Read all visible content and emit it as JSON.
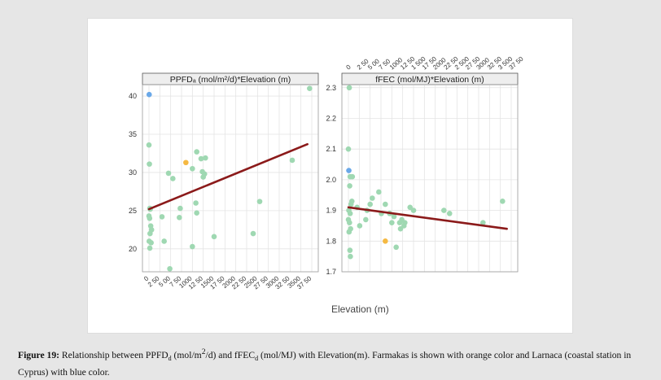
{
  "figure": {
    "xlabel": "Elevation (m)",
    "caption_label": "Figure 19:",
    "caption_text_1": "Relationship between PPFD",
    "caption_sub_1": "d",
    "caption_text_2": "(mol/m",
    "caption_sup_2": "2",
    "caption_text_3": "/d) and fFEC",
    "caption_sub_3": "d",
    "caption_text_4": "(mol/MJ) with Elevation(m). Farmakas is shown with orange color and Larnaca (coastal station in Cyprus) with blue color."
  },
  "colors": {
    "point": "#9fd8b2",
    "highlight_orange": "#f5b942",
    "highlight_blue": "#6aa8e8",
    "trend": "#8b1a1a",
    "strip": "#eeeeee",
    "grid": "#e4e4e4"
  },
  "chart_data": [
    {
      "type": "scatter",
      "title": "PPFDₐ (mol/m²/d)*Elevation (m)",
      "xlabel": "Elevation (m)",
      "xlim": [
        0,
        3750
      ],
      "ylim": [
        17,
        41.5
      ],
      "xticks": [
        "0",
        "250",
        "500",
        "750",
        "1000",
        "1250",
        "1500",
        "1750",
        "2000",
        "2250",
        "2500",
        "2750",
        "3000",
        "3250",
        "3500",
        "3750"
      ],
      "xtick_values": [
        0,
        250,
        500,
        750,
        1000,
        1250,
        1500,
        1750,
        2000,
        2250,
        2500,
        2750,
        3000,
        3250,
        3500,
        3750
      ],
      "xtick_labels": [
        "0",
        "2 50",
        "5 00",
        "7 50",
        "1000",
        "12 50",
        "1500",
        "17 50",
        "2000",
        "22 50",
        "2500",
        "27 50",
        "3000",
        "32 50",
        "3500",
        "37 50"
      ],
      "yticks": [
        20,
        25,
        30,
        35,
        40
      ],
      "xtick_position": "bottom",
      "trend": [
        [
          0,
          25.2
        ],
        [
          3650,
          33.7
        ]
      ],
      "points": [
        {
          "x": 5,
          "y": 40.2,
          "c": "blue"
        },
        {
          "x": 850,
          "y": 31.3,
          "c": "orange"
        },
        {
          "x": 0,
          "y": 33.6
        },
        {
          "x": 10,
          "y": 31.1
        },
        {
          "x": 20,
          "y": 25.3
        },
        {
          "x": 30,
          "y": 25.2
        },
        {
          "x": 0,
          "y": 24.3
        },
        {
          "x": 15,
          "y": 24.0
        },
        {
          "x": 40,
          "y": 23.0
        },
        {
          "x": 60,
          "y": 22.5
        },
        {
          "x": 25,
          "y": 22.0
        },
        {
          "x": 5,
          "y": 21.0
        },
        {
          "x": 50,
          "y": 20.8
        },
        {
          "x": 20,
          "y": 20.1
        },
        {
          "x": 300,
          "y": 24.2
        },
        {
          "x": 350,
          "y": 21.0
        },
        {
          "x": 450,
          "y": 29.9
        },
        {
          "x": 550,
          "y": 29.2
        },
        {
          "x": 480,
          "y": 17.4
        },
        {
          "x": 700,
          "y": 24.1
        },
        {
          "x": 720,
          "y": 25.3
        },
        {
          "x": 1000,
          "y": 30.5
        },
        {
          "x": 1000,
          "y": 20.3
        },
        {
          "x": 1080,
          "y": 26.0
        },
        {
          "x": 1100,
          "y": 24.7
        },
        {
          "x": 1100,
          "y": 32.7
        },
        {
          "x": 1200,
          "y": 31.8
        },
        {
          "x": 1230,
          "y": 30.1
        },
        {
          "x": 1250,
          "y": 29.4
        },
        {
          "x": 1300,
          "y": 31.9
        },
        {
          "x": 1280,
          "y": 29.8
        },
        {
          "x": 1500,
          "y": 21.6
        },
        {
          "x": 2400,
          "y": 22.0
        },
        {
          "x": 2550,
          "y": 26.2
        },
        {
          "x": 3300,
          "y": 31.6
        },
        {
          "x": 3700,
          "y": 41.0
        }
      ]
    },
    {
      "type": "scatter",
      "title": "fFEC (mol/MJ)*Elevation (m)",
      "xlim": [
        0,
        3750
      ],
      "ylim": [
        1.7,
        2.31
      ],
      "xticks": [
        "0",
        "250",
        "500",
        "750",
        "1000",
        "1250",
        "1500",
        "1750",
        "2000",
        "2250",
        "2500",
        "2750",
        "3000",
        "3250",
        "3500",
        "3750"
      ],
      "xtick_values": [
        0,
        250,
        500,
        750,
        1000,
        1250,
        1500,
        1750,
        2000,
        2250,
        2500,
        2750,
        3000,
        3250,
        3500,
        3750
      ],
      "xtick_labels": [
        "0",
        "2 50",
        "5 00",
        "7 50",
        "1000",
        "12 50",
        "1 500",
        "17 50",
        "2000",
        "22 50",
        "2 500",
        "27 50",
        "3000",
        "32 50",
        "3 500",
        "37 50"
      ],
      "yticks": [
        1.7,
        1.8,
        1.9,
        2.0,
        2.1,
        2.2,
        2.3
      ],
      "xtick_position": "top",
      "trend": [
        [
          0,
          1.91
        ],
        [
          3650,
          1.84
        ]
      ],
      "points": [
        {
          "x": 10,
          "y": 2.03,
          "c": "blue"
        },
        {
          "x": 850,
          "y": 1.8,
          "c": "orange"
        },
        {
          "x": 20,
          "y": 2.3
        },
        {
          "x": 0,
          "y": 2.1
        },
        {
          "x": 40,
          "y": 2.01
        },
        {
          "x": 90,
          "y": 2.01
        },
        {
          "x": 30,
          "y": 1.98
        },
        {
          "x": 80,
          "y": 1.93
        },
        {
          "x": 60,
          "y": 1.92
        },
        {
          "x": 10,
          "y": 1.9
        },
        {
          "x": 40,
          "y": 1.89
        },
        {
          "x": 0,
          "y": 1.87
        },
        {
          "x": 25,
          "y": 1.86
        },
        {
          "x": 50,
          "y": 1.84
        },
        {
          "x": 15,
          "y": 1.83
        },
        {
          "x": 35,
          "y": 1.77
        },
        {
          "x": 45,
          "y": 1.75
        },
        {
          "x": 200,
          "y": 1.91
        },
        {
          "x": 260,
          "y": 1.85
        },
        {
          "x": 400,
          "y": 1.87
        },
        {
          "x": 430,
          "y": 1.9
        },
        {
          "x": 500,
          "y": 1.92
        },
        {
          "x": 550,
          "y": 1.94
        },
        {
          "x": 700,
          "y": 1.96
        },
        {
          "x": 760,
          "y": 1.89
        },
        {
          "x": 850,
          "y": 1.92
        },
        {
          "x": 950,
          "y": 1.89
        },
        {
          "x": 1000,
          "y": 1.86
        },
        {
          "x": 1050,
          "y": 1.88
        },
        {
          "x": 1100,
          "y": 1.78
        },
        {
          "x": 1180,
          "y": 1.86
        },
        {
          "x": 1200,
          "y": 1.84
        },
        {
          "x": 1230,
          "y": 1.87
        },
        {
          "x": 1280,
          "y": 1.85
        },
        {
          "x": 1300,
          "y": 1.86
        },
        {
          "x": 1420,
          "y": 1.91
        },
        {
          "x": 1500,
          "y": 1.9
        },
        {
          "x": 2200,
          "y": 1.9
        },
        {
          "x": 2330,
          "y": 1.89
        },
        {
          "x": 3100,
          "y": 1.86
        },
        {
          "x": 3550,
          "y": 1.93
        }
      ]
    }
  ]
}
